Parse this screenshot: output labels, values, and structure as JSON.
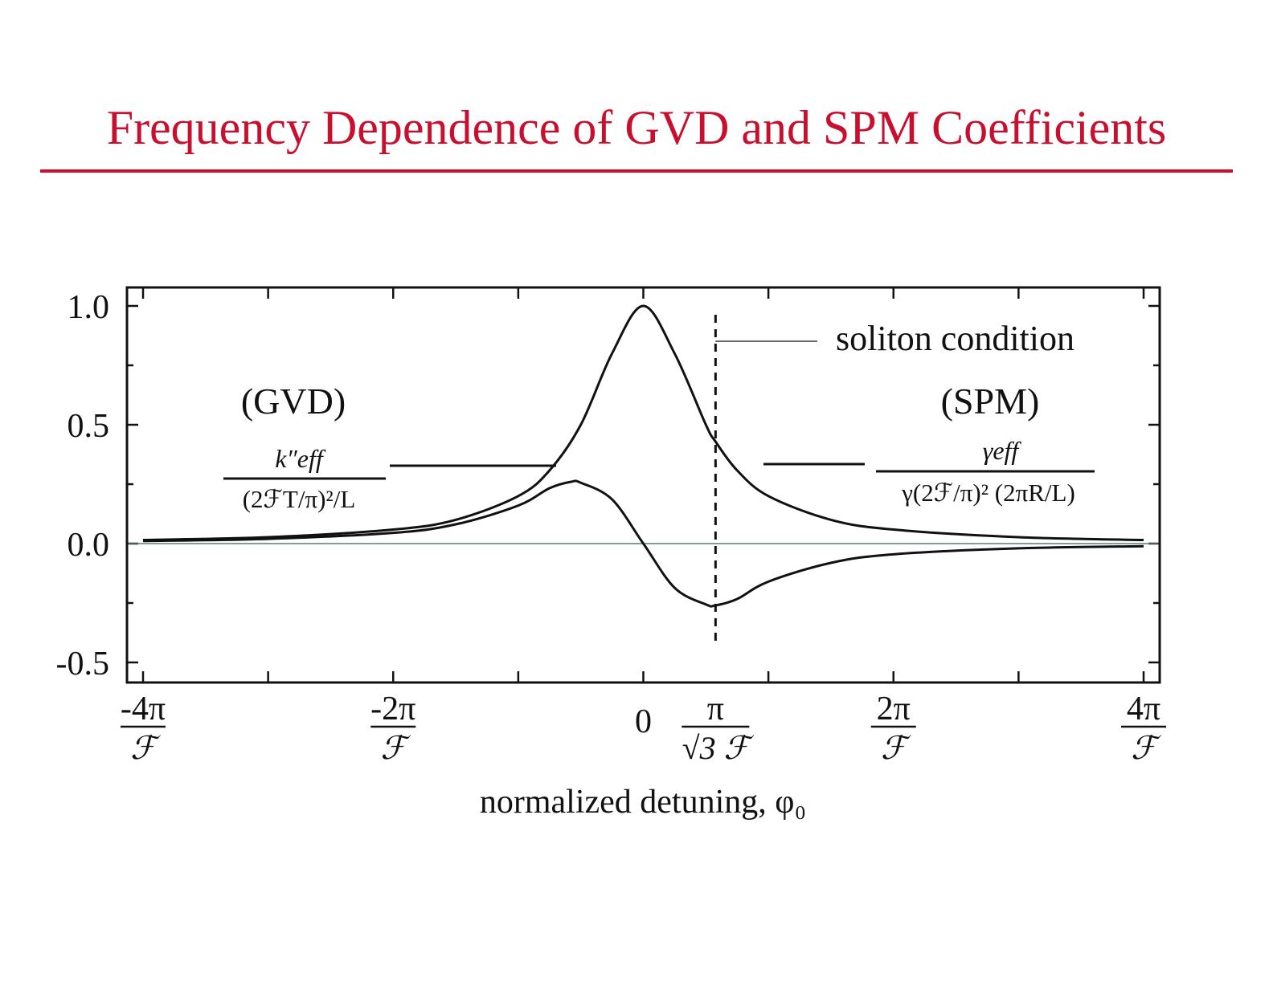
{
  "page": {
    "title": "Frequency Dependence of GVD and SPM Coefficients",
    "accent_color": "#c8102e"
  },
  "chart_data": {
    "type": "line",
    "title": "Frequency Dependence of GVD and SPM Coefficients",
    "xlabel": "normalized detuning, φ₀",
    "xlim": [
      -4,
      4
    ],
    "x_unit": "π/ℱ",
    "ylim": [
      -0.55,
      1.05
    ],
    "grid": false,
    "yticks": [
      {
        "value": -0.5,
        "label": "-0.5"
      },
      {
        "value": 0.0,
        "label": "0.0"
      },
      {
        "value": 0.5,
        "label": "0.5"
      },
      {
        "value": 1.0,
        "label": "1.0"
      }
    ],
    "xticks": [
      {
        "value": -4,
        "num": "-4π",
        "den": "ℱ"
      },
      {
        "value": -2,
        "num": "-2π",
        "den": "ℱ"
      },
      {
        "value": 0,
        "num": "0",
        "den": ""
      },
      {
        "value": 0.5774,
        "num": "π",
        "den": "√3 ℱ"
      },
      {
        "value": 2,
        "num": "2π",
        "den": "ℱ"
      },
      {
        "value": 4,
        "num": "4π",
        "den": "ℱ"
      }
    ],
    "series": [
      {
        "name": "(SPM)",
        "formula_numerator": "γeff",
        "formula_denominator": "γ(2ℱ/π)² (2πR/L)",
        "x": [
          -4,
          -3,
          -2,
          -1.5,
          -1,
          -0.75,
          -0.5,
          -0.25,
          0,
          0.25,
          0.5,
          0.5774,
          0.75,
          1,
          1.5,
          2,
          3,
          4
        ],
        "y": [
          0.015,
          0.027,
          0.059,
          0.1,
          0.2,
          0.308,
          0.5,
          0.8,
          1.0,
          0.8,
          0.5,
          0.429,
          0.308,
          0.2,
          0.1,
          0.059,
          0.027,
          0.015
        ]
      },
      {
        "name": "(GVD)",
        "formula_numerator": "k″eff",
        "formula_denominator": "(2ℱT/π)²/L",
        "x": [
          -4,
          -3,
          -2,
          -1.5,
          -1,
          -0.75,
          -0.5774,
          -0.5,
          -0.25,
          0,
          0.25,
          0.5,
          0.5774,
          0.75,
          1,
          1.5,
          2,
          3,
          4
        ],
        "y": [
          0.011,
          0.02,
          0.045,
          0.081,
          0.16,
          0.233,
          0.26,
          0.256,
          0.186,
          0.0,
          -0.186,
          -0.256,
          -0.26,
          -0.233,
          -0.16,
          -0.081,
          -0.045,
          -0.02,
          -0.011
        ]
      }
    ],
    "annotations": {
      "soliton_condition": {
        "label": "soliton condition",
        "x": 0.5774
      }
    }
  }
}
